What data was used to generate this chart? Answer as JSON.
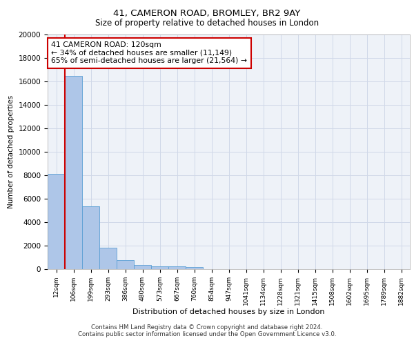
{
  "title1": "41, CAMERON ROAD, BROMLEY, BR2 9AY",
  "title2": "Size of property relative to detached houses in London",
  "xlabel": "Distribution of detached houses by size in London",
  "ylabel": "Number of detached properties",
  "categories": [
    "12sqm",
    "106sqm",
    "199sqm",
    "293sqm",
    "386sqm",
    "480sqm",
    "573sqm",
    "667sqm",
    "760sqm",
    "854sqm",
    "947sqm",
    "1041sqm",
    "1134sqm",
    "1228sqm",
    "1321sqm",
    "1415sqm",
    "1508sqm",
    "1602sqm",
    "1695sqm",
    "1789sqm",
    "1882sqm"
  ],
  "values": [
    8100,
    16500,
    5350,
    1850,
    750,
    330,
    260,
    220,
    200,
    0,
    0,
    0,
    0,
    0,
    0,
    0,
    0,
    0,
    0,
    0,
    0
  ],
  "bar_color": "#aec6e8",
  "bar_edge_color": "#5a9fd4",
  "vline_color": "#cc0000",
  "annotation_text": "41 CAMERON ROAD: 120sqm\n← 34% of detached houses are smaller (11,149)\n65% of semi-detached houses are larger (21,564) →",
  "annotation_box_color": "#ffffff",
  "annotation_box_edge": "#cc0000",
  "ylim": [
    0,
    20000
  ],
  "yticks": [
    0,
    2000,
    4000,
    6000,
    8000,
    10000,
    12000,
    14000,
    16000,
    18000,
    20000
  ],
  "grid_color": "#d0d8e8",
  "bg_color": "#eef2f8",
  "footer1": "Contains HM Land Registry data © Crown copyright and database right 2024.",
  "footer2": "Contains public sector information licensed under the Open Government Licence v3.0."
}
